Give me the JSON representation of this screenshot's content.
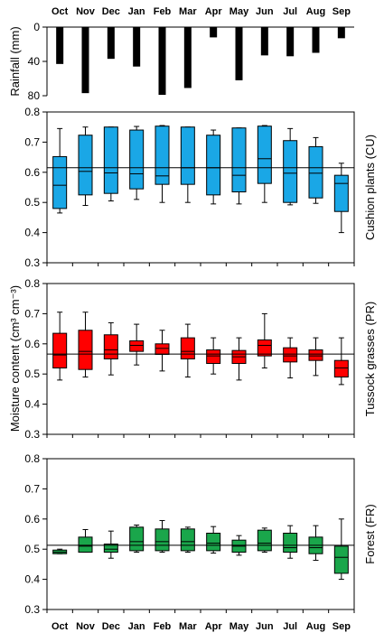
{
  "chart_data": [
    {
      "type": "bar",
      "ylabel": "Rainfall (mm)",
      "yaxis_inverted": true,
      "ylim": [
        0,
        80
      ],
      "yticks": [
        0,
        40,
        80
      ],
      "categories": [
        "Oct",
        "Nov",
        "Dec",
        "Jan",
        "Feb",
        "Mar",
        "Apr",
        "May",
        "Jun",
        "Jul",
        "Aug",
        "Sep"
      ],
      "values": [
        43,
        77,
        37,
        46,
        79,
        71,
        12,
        62,
        33,
        34,
        30,
        13
      ],
      "bar_color": "#000000"
    },
    {
      "type": "box",
      "label": "Cushion plants (CU)",
      "color": "#1aa7e6",
      "ylim": [
        0.3,
        0.8
      ],
      "yticks": [
        0.3,
        0.4,
        0.5,
        0.6,
        0.7,
        0.8
      ],
      "reference_line": 0.615,
      "categories": [
        "Oct",
        "Nov",
        "Dec",
        "Jan",
        "Feb",
        "Mar",
        "Apr",
        "May",
        "Jun",
        "Jul",
        "Aug",
        "Sep"
      ],
      "boxes": [
        {
          "min": 0.465,
          "q1": 0.48,
          "median": 0.557,
          "q3": 0.652,
          "max": 0.745
        },
        {
          "min": 0.49,
          "q1": 0.525,
          "median": 0.603,
          "q3": 0.723,
          "max": 0.75
        },
        {
          "min": 0.505,
          "q1": 0.53,
          "median": 0.598,
          "q3": 0.75,
          "max": 0.75
        },
        {
          "min": 0.51,
          "q1": 0.545,
          "median": 0.595,
          "q3": 0.74,
          "max": 0.752
        },
        {
          "min": 0.5,
          "q1": 0.56,
          "median": 0.588,
          "q3": 0.753,
          "max": 0.755
        },
        {
          "min": 0.5,
          "q1": 0.56,
          "median": 0.615,
          "q3": 0.75,
          "max": 0.75
        },
        {
          "min": 0.495,
          "q1": 0.525,
          "median": 0.615,
          "q3": 0.723,
          "max": 0.74
        },
        {
          "min": 0.495,
          "q1": 0.535,
          "median": 0.59,
          "q3": 0.747,
          "max": 0.747
        },
        {
          "min": 0.5,
          "q1": 0.563,
          "median": 0.645,
          "q3": 0.753,
          "max": 0.755
        },
        {
          "min": 0.492,
          "q1": 0.5,
          "median": 0.597,
          "q3": 0.705,
          "max": 0.745
        },
        {
          "min": 0.497,
          "q1": 0.515,
          "median": 0.597,
          "q3": 0.685,
          "max": 0.715
        },
        {
          "min": 0.4,
          "q1": 0.47,
          "median": 0.563,
          "q3": 0.59,
          "max": 0.63
        }
      ]
    },
    {
      "type": "box",
      "label": "Tussock grasses (PR)",
      "color": "#ff0000",
      "ylim": [
        0.3,
        0.8
      ],
      "yticks": [
        0.3,
        0.4,
        0.5,
        0.6,
        0.7,
        0.8
      ],
      "reference_line": 0.566,
      "categories": [
        "Oct",
        "Nov",
        "Dec",
        "Jan",
        "Feb",
        "Mar",
        "Apr",
        "May",
        "Jun",
        "Jul",
        "Aug",
        "Sep"
      ],
      "boxes": [
        {
          "min": 0.48,
          "q1": 0.52,
          "median": 0.563,
          "q3": 0.635,
          "max": 0.705
        },
        {
          "min": 0.49,
          "q1": 0.515,
          "median": 0.575,
          "q3": 0.645,
          "max": 0.705
        },
        {
          "min": 0.497,
          "q1": 0.55,
          "median": 0.58,
          "q3": 0.63,
          "max": 0.67
        },
        {
          "min": 0.53,
          "q1": 0.575,
          "median": 0.595,
          "q3": 0.61,
          "max": 0.665
        },
        {
          "min": 0.51,
          "q1": 0.565,
          "median": 0.585,
          "q3": 0.6,
          "max": 0.645
        },
        {
          "min": 0.49,
          "q1": 0.55,
          "median": 0.575,
          "q3": 0.62,
          "max": 0.665
        },
        {
          "min": 0.5,
          "q1": 0.535,
          "median": 0.56,
          "q3": 0.58,
          "max": 0.62
        },
        {
          "min": 0.48,
          "q1": 0.535,
          "median": 0.557,
          "q3": 0.578,
          "max": 0.62
        },
        {
          "min": 0.52,
          "q1": 0.56,
          "median": 0.595,
          "q3": 0.613,
          "max": 0.7
        },
        {
          "min": 0.487,
          "q1": 0.54,
          "median": 0.56,
          "q3": 0.587,
          "max": 0.62
        },
        {
          "min": 0.495,
          "q1": 0.545,
          "median": 0.56,
          "q3": 0.58,
          "max": 0.62
        },
        {
          "min": 0.465,
          "q1": 0.49,
          "median": 0.52,
          "q3": 0.545,
          "max": 0.62
        }
      ]
    },
    {
      "type": "box",
      "label": "Forest (FR)",
      "color": "#1aa64b",
      "ylim": [
        0.3,
        0.8
      ],
      "yticks": [
        0.3,
        0.4,
        0.5,
        0.6,
        0.7,
        0.8
      ],
      "reference_line": 0.513,
      "categories": [
        "Oct",
        "Nov",
        "Dec",
        "Jan",
        "Feb",
        "Mar",
        "Apr",
        "May",
        "Jun",
        "Jul",
        "Aug",
        "Sep"
      ],
      "boxes": [
        {
          "min": 0.485,
          "q1": 0.485,
          "median": 0.49,
          "q3": 0.497,
          "max": 0.5
        },
        {
          "min": 0.49,
          "q1": 0.49,
          "median": 0.51,
          "q3": 0.54,
          "max": 0.565
        },
        {
          "min": 0.47,
          "q1": 0.49,
          "median": 0.5,
          "q3": 0.517,
          "max": 0.56
        },
        {
          "min": 0.49,
          "q1": 0.495,
          "median": 0.525,
          "q3": 0.573,
          "max": 0.58
        },
        {
          "min": 0.49,
          "q1": 0.495,
          "median": 0.525,
          "q3": 0.567,
          "max": 0.595
        },
        {
          "min": 0.49,
          "q1": 0.495,
          "median": 0.525,
          "q3": 0.567,
          "max": 0.573
        },
        {
          "min": 0.487,
          "q1": 0.495,
          "median": 0.52,
          "q3": 0.553,
          "max": 0.575
        },
        {
          "min": 0.48,
          "q1": 0.49,
          "median": 0.51,
          "q3": 0.53,
          "max": 0.545
        },
        {
          "min": 0.49,
          "q1": 0.495,
          "median": 0.52,
          "q3": 0.563,
          "max": 0.57
        },
        {
          "min": 0.47,
          "q1": 0.49,
          "median": 0.505,
          "q3": 0.553,
          "max": 0.578
        },
        {
          "min": 0.463,
          "q1": 0.485,
          "median": 0.505,
          "q3": 0.54,
          "max": 0.578
        },
        {
          "min": 0.4,
          "q1": 0.42,
          "median": 0.473,
          "q3": 0.51,
          "max": 0.6
        }
      ]
    }
  ],
  "labels": {
    "months_top": [
      "Oct",
      "Nov",
      "Dec",
      "Jan",
      "Feb",
      "Mar",
      "Apr",
      "May",
      "Jun",
      "Jul",
      "Aug",
      "Sep"
    ],
    "months_bottom": [
      "Oct",
      "Nov",
      "Dec",
      "Jan",
      "Feb",
      "Mar",
      "Apr",
      "May",
      "Jun",
      "Jul",
      "Aug",
      "Sep"
    ],
    "shared_ylabel": "Moisture content (cm³ cm⁻³)"
  }
}
